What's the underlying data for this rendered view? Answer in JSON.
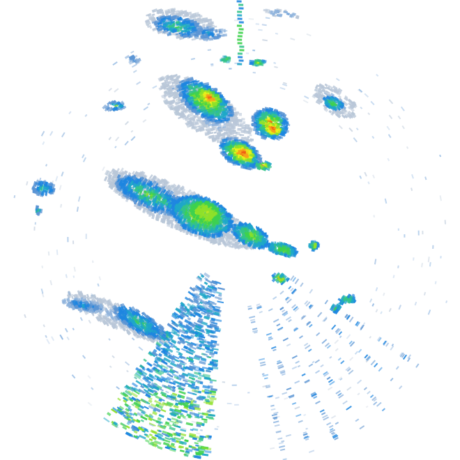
{
  "map": {
    "type": "weather-radar-reflectivity",
    "background": "#ffffff",
    "center_fill": "#ffffff",
    "palette": [
      "#b9c7d8",
      "#8fb3dc",
      "#5b95d4",
      "#1e86e0",
      "#1ea7c8",
      "#34c38a",
      "#3ed14e",
      "#8fe02a",
      "#e8f21a",
      "#f6a21a",
      "#ef5a14",
      "#d61d12"
    ]
  }
}
